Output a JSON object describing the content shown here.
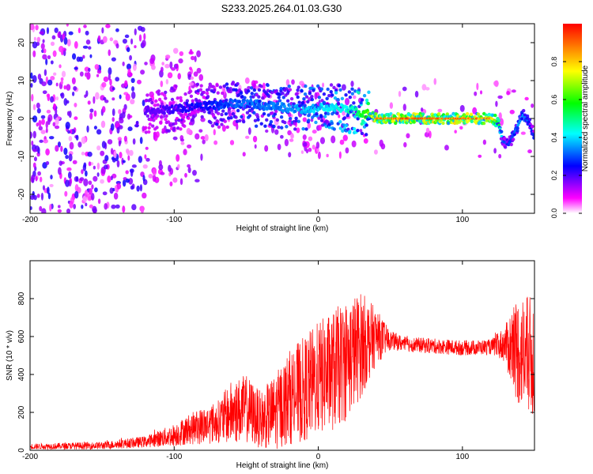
{
  "title": "S233.2025.264.01.03.G30",
  "chart_data": [
    {
      "type": "heatmap",
      "title": "S233.2025.264.01.03.G30",
      "xlabel": "Height of straight line (km)",
      "ylabel": "Frequency (Hz)",
      "xlim": [
        -200,
        150
      ],
      "ylim": [
        -25,
        25
      ],
      "xticks": [
        -200,
        -100,
        0,
        100
      ],
      "yticks": [
        20,
        10,
        0,
        -10,
        -20
      ],
      "colorbar": {
        "label": "Normalized spectral amplitude",
        "range": [
          0,
          1
        ],
        "ticks": [
          0.0,
          0.2,
          0.4,
          0.6,
          0.8
        ],
        "colors": [
          "#ffffff",
          "#ff00ff",
          "#0000ff",
          "#00ffff",
          "#00ff00",
          "#ffff00",
          "#ff0000"
        ]
      },
      "ridge": {
        "x": [
          -115,
          -90,
          -70,
          -50,
          -30,
          -10,
          10,
          25,
          35,
          40,
          60,
          80,
          100,
          120,
          125,
          128,
          132,
          137,
          142,
          146,
          150
        ],
        "y": [
          2,
          3,
          3.5,
          4,
          3,
          2.5,
          3,
          2,
          1,
          0,
          0,
          0,
          0,
          0,
          -1,
          -6,
          -7,
          -3,
          1,
          -1,
          -5
        ],
        "amplitude": [
          0.2,
          0.25,
          0.3,
          0.35,
          0.35,
          0.4,
          0.45,
          0.5,
          0.7,
          0.9,
          0.95,
          0.95,
          0.95,
          0.9,
          0.6,
          0.35,
          0.3,
          0.35,
          0.4,
          0.3,
          0.3
        ]
      }
    },
    {
      "type": "line",
      "xlabel": "Height of straight line (km)",
      "ylabel": "SNR (10 * v/v)",
      "xlim": [
        -200,
        150
      ],
      "ylim": [
        0,
        1000
      ],
      "xticks": [
        -200,
        -100,
        0,
        100
      ],
      "yticks": [
        0,
        200,
        400,
        600,
        800
      ],
      "color": "#ff0000",
      "envelope": {
        "x": [
          -200,
          -150,
          -120,
          -100,
          -90,
          -80,
          -70,
          -60,
          -50,
          -40,
          -30,
          -20,
          -10,
          0,
          10,
          20,
          30,
          40,
          50,
          60,
          80,
          100,
          120,
          130,
          135,
          140,
          145,
          150
        ],
        "mean": [
          20,
          25,
          45,
          80,
          110,
          130,
          150,
          200,
          220,
          160,
          200,
          280,
          320,
          380,
          420,
          480,
          560,
          600,
          580,
          560,
          550,
          540,
          545,
          560,
          540,
          520,
          500,
          480
        ],
        "spread": [
          15,
          20,
          30,
          60,
          80,
          100,
          110,
          170,
          180,
          150,
          200,
          250,
          280,
          300,
          320,
          320,
          280,
          150,
          50,
          40,
          40,
          40,
          40,
          100,
          250,
          300,
          320,
          330
        ]
      }
    }
  ]
}
